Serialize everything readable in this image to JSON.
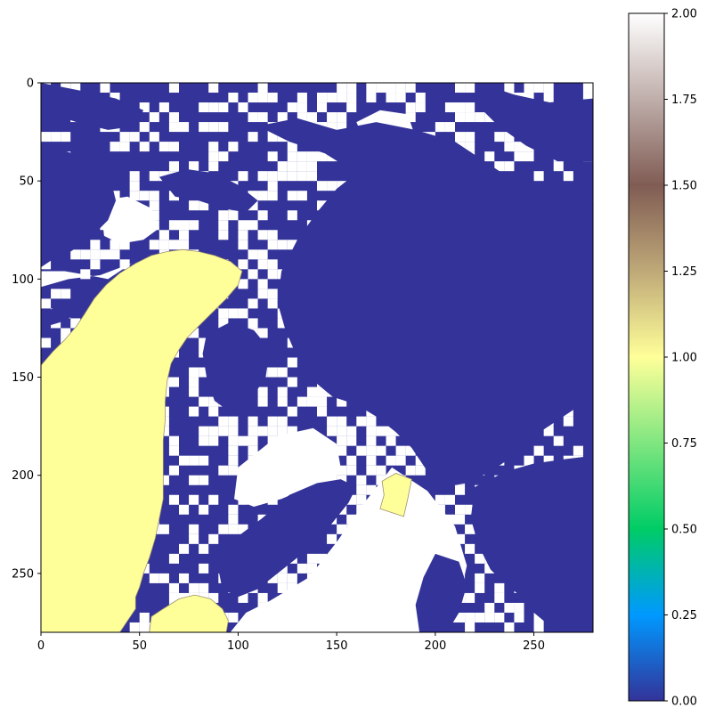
{
  "chart_data": {
    "type": "heatmap",
    "title": "",
    "xlabel": "",
    "ylabel": "",
    "colormap": "terrain",
    "value_range": [
      0,
      2
    ],
    "grid_size": [
      280,
      280
    ],
    "xlim": [
      0,
      280
    ],
    "ylim": [
      280,
      0
    ],
    "x_ticks": [
      0,
      50,
      100,
      150,
      200,
      250
    ],
    "x_tick_labels": [
      "0",
      "50",
      "100",
      "150",
      "200",
      "250"
    ],
    "y_ticks": [
      0,
      50,
      100,
      150,
      200,
      250
    ],
    "y_tick_labels": [
      "0",
      "50",
      "100",
      "150",
      "200",
      "250"
    ],
    "colorbar": {
      "ticks": [
        0.0,
        0.25,
        0.5,
        0.75,
        1.0,
        1.25,
        1.5,
        1.75,
        2.0
      ],
      "tick_labels": [
        "0.00",
        "0.25",
        "0.50",
        "0.75",
        "1.00",
        "1.25",
        "1.50",
        "1.75",
        "2.00"
      ],
      "colors": [
        {
          "value": 0.0,
          "color": "#333399"
        },
        {
          "value": 0.25,
          "color": "#0099ff"
        },
        {
          "value": 0.5,
          "color": "#00cc66"
        },
        {
          "value": 0.75,
          "color": "#80e680"
        },
        {
          "value": 1.0,
          "color": "#ffff99"
        },
        {
          "value": 1.25,
          "color": "#bfa978"
        },
        {
          "value": 1.5,
          "color": "#805c54"
        },
        {
          "value": 1.75,
          "color": "#bfaeaa"
        },
        {
          "value": 2.0,
          "color": "#ffffff"
        }
      ]
    },
    "classes": [
      {
        "value": 0,
        "color": "#333399"
      },
      {
        "value": 1,
        "color": "#ffff99"
      },
      {
        "value": 2,
        "color": "#ffffff"
      }
    ],
    "regions_value_1": [
      {
        "points": [
          [
            0,
            144
          ],
          [
            6,
            137
          ],
          [
            12,
            131
          ],
          [
            18,
            124
          ],
          [
            22,
            118
          ],
          [
            27,
            110
          ],
          [
            33,
            103
          ],
          [
            40,
            97
          ],
          [
            48,
            92
          ],
          [
            56,
            88
          ],
          [
            64,
            86
          ],
          [
            72,
            85
          ],
          [
            80,
            86
          ],
          [
            88,
            88
          ],
          [
            96,
            91
          ],
          [
            102,
            96
          ],
          [
            100,
            103
          ],
          [
            94,
            110
          ],
          [
            87,
            117
          ],
          [
            80,
            124
          ],
          [
            74,
            130
          ],
          [
            70,
            136
          ],
          [
            66,
            143
          ],
          [
            64,
            152
          ],
          [
            63,
            162
          ],
          [
            63,
            172
          ],
          [
            62,
            182
          ],
          [
            62,
            192
          ],
          [
            62,
            202
          ],
          [
            62,
            212
          ],
          [
            60,
            222
          ],
          [
            58,
            232
          ],
          [
            55,
            242
          ],
          [
            52,
            250
          ],
          [
            50,
            257
          ],
          [
            48,
            262
          ],
          [
            48,
            268
          ],
          [
            44,
            274
          ],
          [
            40,
            280
          ],
          [
            0,
            280
          ]
        ]
      },
      {
        "points": [
          [
            55,
            280
          ],
          [
            56,
            272
          ],
          [
            62,
            268
          ],
          [
            70,
            263
          ],
          [
            78,
            261
          ],
          [
            86,
            263
          ],
          [
            92,
            268
          ],
          [
            95,
            274
          ],
          [
            94,
            280
          ]
        ]
      },
      {
        "points": [
          [
            173,
            203
          ],
          [
            180,
            199
          ],
          [
            188,
            202
          ],
          [
            186,
            212
          ],
          [
            184,
            221
          ],
          [
            178,
            219
          ],
          [
            172,
            217
          ],
          [
            174,
            210
          ]
        ]
      }
    ],
    "regions_value_0": [
      {
        "points": [
          [
            0,
            30
          ],
          [
            10,
            34
          ],
          [
            22,
            38
          ],
          [
            30,
            44
          ],
          [
            36,
            52
          ],
          [
            38,
            60
          ],
          [
            34,
            70
          ],
          [
            26,
            78
          ],
          [
            18,
            84
          ],
          [
            12,
            88
          ],
          [
            6,
            90
          ],
          [
            0,
            94
          ]
        ]
      },
      {
        "points": [
          [
            0,
            118
          ],
          [
            8,
            114
          ],
          [
            16,
            110
          ],
          [
            24,
            106
          ],
          [
            32,
            102
          ],
          [
            38,
            99
          ],
          [
            40,
            104
          ],
          [
            34,
            110
          ],
          [
            26,
            114
          ],
          [
            18,
            118
          ],
          [
            10,
            122
          ],
          [
            0,
            125
          ]
        ]
      },
      {
        "points": [
          [
            110,
            22
          ],
          [
            130,
            18
          ],
          [
            150,
            24
          ],
          [
            170,
            20
          ],
          [
            190,
            24
          ],
          [
            210,
            30
          ],
          [
            225,
            40
          ],
          [
            240,
            50
          ],
          [
            262,
            58
          ],
          [
            280,
            60
          ],
          [
            280,
            160
          ],
          [
            262,
            172
          ],
          [
            250,
            180
          ],
          [
            240,
            190
          ],
          [
            228,
            198
          ],
          [
            216,
            204
          ],
          [
            204,
            206
          ],
          [
            196,
            198
          ],
          [
            188,
            186
          ],
          [
            180,
            178
          ],
          [
            170,
            170
          ],
          [
            160,
            164
          ],
          [
            148,
            160
          ],
          [
            136,
            150
          ],
          [
            130,
            140
          ],
          [
            124,
            126
          ],
          [
            120,
            112
          ],
          [
            122,
            96
          ],
          [
            130,
            80
          ],
          [
            140,
            66
          ],
          [
            150,
            54
          ],
          [
            160,
            46
          ],
          [
            144,
            36
          ],
          [
            126,
            30
          ]
        ]
      },
      {
        "points": [
          [
            220,
            206
          ],
          [
            236,
            198
          ],
          [
            250,
            194
          ],
          [
            264,
            192
          ],
          [
            280,
            190
          ],
          [
            280,
            280
          ],
          [
            262,
            280
          ],
          [
            250,
            270
          ],
          [
            244,
            262
          ],
          [
            236,
            256
          ],
          [
            228,
            248
          ],
          [
            222,
            236
          ],
          [
            218,
            222
          ]
        ]
      },
      {
        "points": [
          [
            96,
            234
          ],
          [
            112,
            222
          ],
          [
            126,
            210
          ],
          [
            140,
            204
          ],
          [
            152,
            202
          ],
          [
            160,
            206
          ],
          [
            156,
            214
          ],
          [
            148,
            224
          ],
          [
            140,
            234
          ],
          [
            130,
            242
          ],
          [
            120,
            250
          ],
          [
            110,
            258
          ],
          [
            100,
            262
          ],
          [
            92,
            258
          ],
          [
            90,
            248
          ]
        ]
      },
      {
        "points": [
          [
            60,
            48
          ],
          [
            74,
            44
          ],
          [
            88,
            46
          ],
          [
            100,
            52
          ],
          [
            110,
            60
          ],
          [
            104,
            66
          ],
          [
            92,
            64
          ],
          [
            80,
            60
          ],
          [
            68,
            58
          ]
        ]
      },
      {
        "points": [
          [
            190,
            150
          ],
          [
            204,
            142
          ],
          [
            214,
            146
          ],
          [
            216,
            158
          ],
          [
            208,
            168
          ],
          [
            196,
            166
          ],
          [
            188,
            160
          ]
        ]
      },
      {
        "points": [
          [
            84,
            128
          ],
          [
            96,
            122
          ],
          [
            108,
            126
          ],
          [
            116,
            136
          ],
          [
            114,
            150
          ],
          [
            106,
            162
          ],
          [
            96,
            168
          ],
          [
            88,
            162
          ],
          [
            84,
            150
          ],
          [
            82,
            138
          ]
        ]
      },
      {
        "points": [
          [
            150,
            110
          ],
          [
            162,
            104
          ],
          [
            176,
            108
          ],
          [
            184,
            118
          ],
          [
            180,
            130
          ],
          [
            170,
            138
          ],
          [
            158,
            136
          ],
          [
            150,
            126
          ]
        ]
      },
      {
        "points": [
          [
            0,
            0
          ],
          [
            20,
            4
          ],
          [
            38,
            8
          ],
          [
            52,
            14
          ],
          [
            48,
            22
          ],
          [
            34,
            24
          ],
          [
            18,
            20
          ],
          [
            6,
            16
          ],
          [
            0,
            12
          ]
        ]
      },
      {
        "points": [
          [
            222,
            0
          ],
          [
            240,
            6
          ],
          [
            258,
            10
          ],
          [
            280,
            8
          ],
          [
            280,
            40
          ],
          [
            262,
            40
          ],
          [
            246,
            32
          ],
          [
            232,
            22
          ],
          [
            222,
            12
          ]
        ]
      },
      {
        "points": [
          [
            200,
            240
          ],
          [
            212,
            244
          ],
          [
            216,
            256
          ],
          [
            212,
            270
          ],
          [
            206,
            280
          ],
          [
            192,
            280
          ],
          [
            190,
            266
          ],
          [
            194,
            252
          ]
        ]
      }
    ],
    "regions_value_2": [
      {
        "points": [
          [
            0,
            96
          ],
          [
            12,
            96
          ],
          [
            24,
            98
          ],
          [
            34,
            100
          ],
          [
            40,
            96
          ],
          [
            46,
            92
          ],
          [
            30,
            98
          ],
          [
            14,
            100
          ],
          [
            0,
            104
          ]
        ]
      },
      {
        "points": [
          [
            100,
            196
          ],
          [
            120,
            180
          ],
          [
            138,
            176
          ],
          [
            150,
            184
          ],
          [
            152,
            196
          ],
          [
            148,
            204
          ],
          [
            136,
            206
          ],
          [
            122,
            212
          ],
          [
            108,
            216
          ],
          [
            98,
            212
          ]
        ]
      },
      {
        "points": [
          [
            136,
            252
          ],
          [
            150,
            234
          ],
          [
            164,
            214
          ],
          [
            178,
            196
          ],
          [
            196,
            208
          ],
          [
            210,
            226
          ],
          [
            216,
            246
          ],
          [
            212,
            264
          ],
          [
            200,
            280
          ],
          [
            96,
            280
          ],
          [
            104,
            270
          ],
          [
            116,
            264
          ],
          [
            126,
            258
          ]
        ]
      },
      {
        "points": [
          [
            30,
            60
          ],
          [
            44,
            58
          ],
          [
            56,
            64
          ],
          [
            60,
            74
          ],
          [
            52,
            80
          ],
          [
            40,
            82
          ],
          [
            32,
            78
          ]
        ]
      },
      {
        "points": [
          [
            188,
            86
          ],
          [
            200,
            80
          ],
          [
            212,
            84
          ],
          [
            214,
            96
          ],
          [
            204,
            104
          ],
          [
            192,
            100
          ]
        ]
      },
      {
        "points": [
          [
            250,
            100
          ],
          [
            264,
            96
          ],
          [
            276,
            102
          ],
          [
            274,
            114
          ],
          [
            262,
            120
          ],
          [
            252,
            114
          ]
        ]
      },
      {
        "points": [
          [
            160,
            20
          ],
          [
            172,
            14
          ],
          [
            186,
            16
          ],
          [
            190,
            28
          ],
          [
            180,
            36
          ],
          [
            166,
            34
          ]
        ]
      }
    ],
    "noise_seed": 7
  }
}
